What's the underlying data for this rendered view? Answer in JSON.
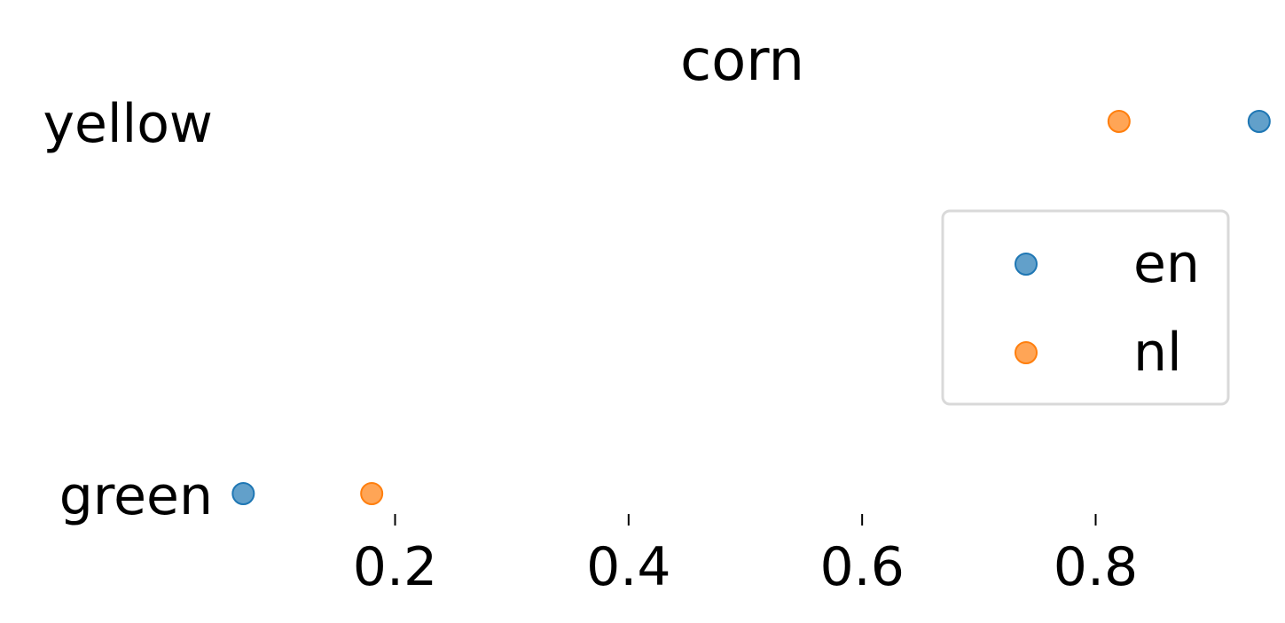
{
  "chart_data": {
    "type": "scatter",
    "title": "corn",
    "xlabel": "",
    "ylabel": "",
    "categories": [
      "green",
      "yellow"
    ],
    "xlim": [
      0.05,
      0.95
    ],
    "xticks": [
      0.2,
      0.4,
      0.6,
      0.8
    ],
    "xtick_labels": [
      "0.2",
      "0.4",
      "0.6",
      "0.8"
    ],
    "grid": false,
    "legend_position": "right",
    "series": [
      {
        "name": "en",
        "color": "#1f77b4",
        "values": [
          0.07,
          0.94
        ]
      },
      {
        "name": "nl",
        "color": "#ff7f0e",
        "values": [
          0.18,
          0.82
        ]
      }
    ]
  }
}
